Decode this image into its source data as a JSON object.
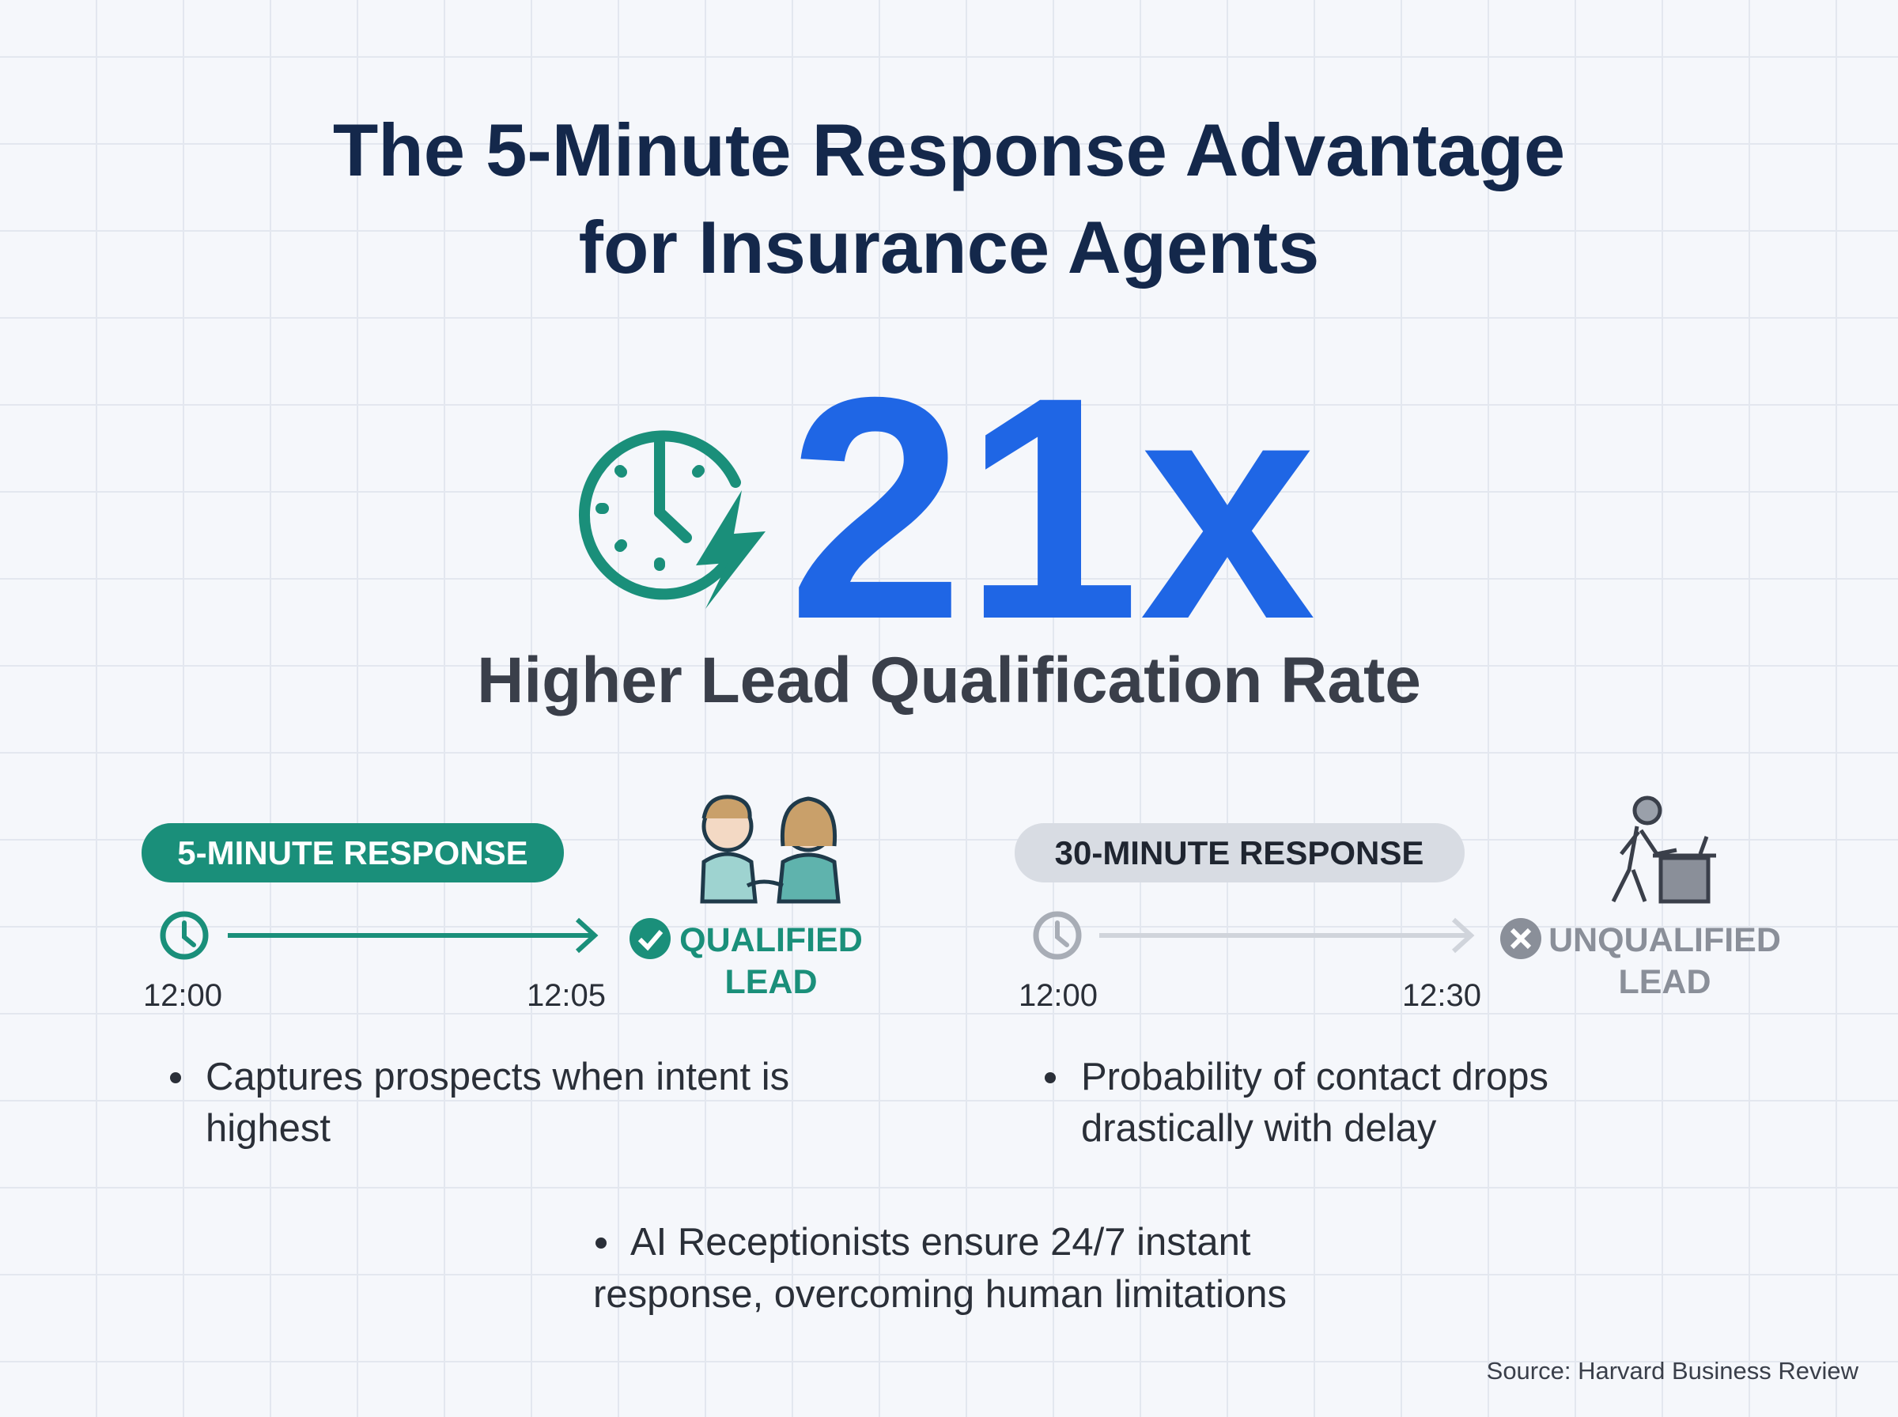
{
  "header": {
    "title_lines": [
      "The 5-Minute Response Advantage",
      "for Insurance Agents"
    ]
  },
  "headline": {
    "stat": "21x",
    "caption": "Higher Lead Qualification Rate"
  },
  "panels": [
    {
      "label": "5-MINUTE RESPONSE",
      "start_time": "12:00",
      "end_time": "12:05",
      "outcome_lines": [
        "QUALIFIED",
        "LEAD"
      ],
      "bullet_lines": [
        "Captures prospects when intent is",
        "highest"
      ]
    },
    {
      "label": "30-MINUTE RESPONSE",
      "start_time": "12:00",
      "end_time": "12:30",
      "outcome_lines": [
        "UNQUALIFIED",
        "LEAD"
      ],
      "bullet_lines": [
        "Probability of contact drops",
        "drastically with delay"
      ]
    }
  ],
  "footer_bullet_lines": [
    "AI Receptionists ensure 24/7 instant",
    "response, overcoming human limitations"
  ],
  "source": "Source: Harvard Business Review"
}
